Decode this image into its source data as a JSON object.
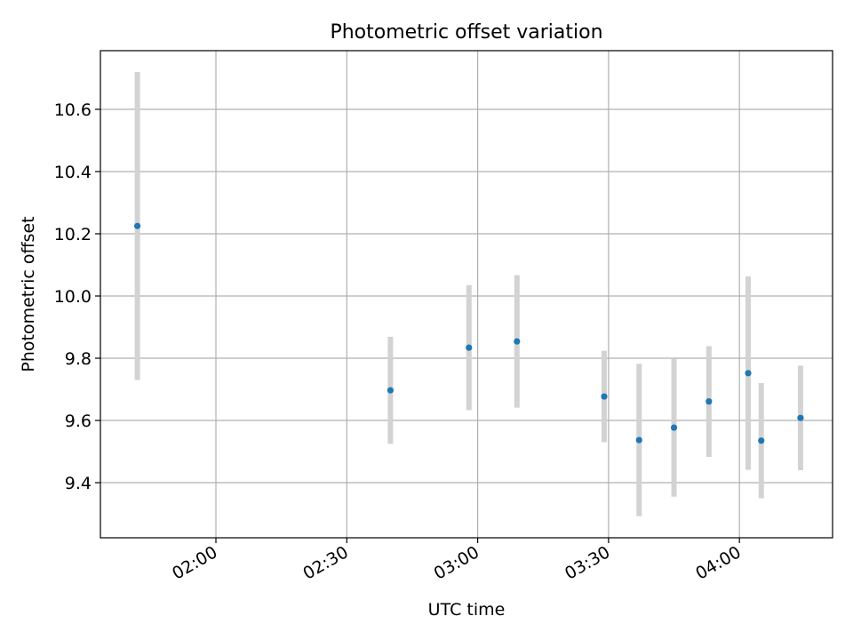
{
  "chart_data": {
    "type": "scatter",
    "title": "Photometric offset variation",
    "xlabel": "UTC time",
    "ylabel": "Photometric offset",
    "x_ticks": [
      "02:00",
      "02:30",
      "03:00",
      "03:30",
      "04:00"
    ],
    "y_ticks": [
      "9.4",
      "9.6",
      "9.8",
      "10.0",
      "10.2",
      "10.4",
      "10.6"
    ],
    "grid": true,
    "legend": "none",
    "colors": {
      "points": "#1f77b4",
      "errorbars": "#d3d3d3",
      "grid": "#b0b0b0"
    },
    "points": [
      {
        "x": "01:42",
        "y": 10.225,
        "yerr": 0.495
      },
      {
        "x": "02:40",
        "y": 9.697,
        "yerr": 0.172
      },
      {
        "x": "02:58",
        "y": 9.834,
        "yerr": 0.201
      },
      {
        "x": "03:09",
        "y": 9.854,
        "yerr": 0.213
      },
      {
        "x": "03:29",
        "y": 9.677,
        "yerr": 0.147
      },
      {
        "x": "03:37",
        "y": 9.537,
        "yerr": 0.245
      },
      {
        "x": "03:45",
        "y": 9.577,
        "yerr": 0.222
      },
      {
        "x": "03:53",
        "y": 9.661,
        "yerr": 0.178
      },
      {
        "x": "04:02",
        "y": 9.752,
        "yerr": 0.311
      },
      {
        "x": "04:05",
        "y": 9.535,
        "yerr": 0.185
      },
      {
        "x": "04:14",
        "y": 9.608,
        "yerr": 0.168
      }
    ]
  }
}
